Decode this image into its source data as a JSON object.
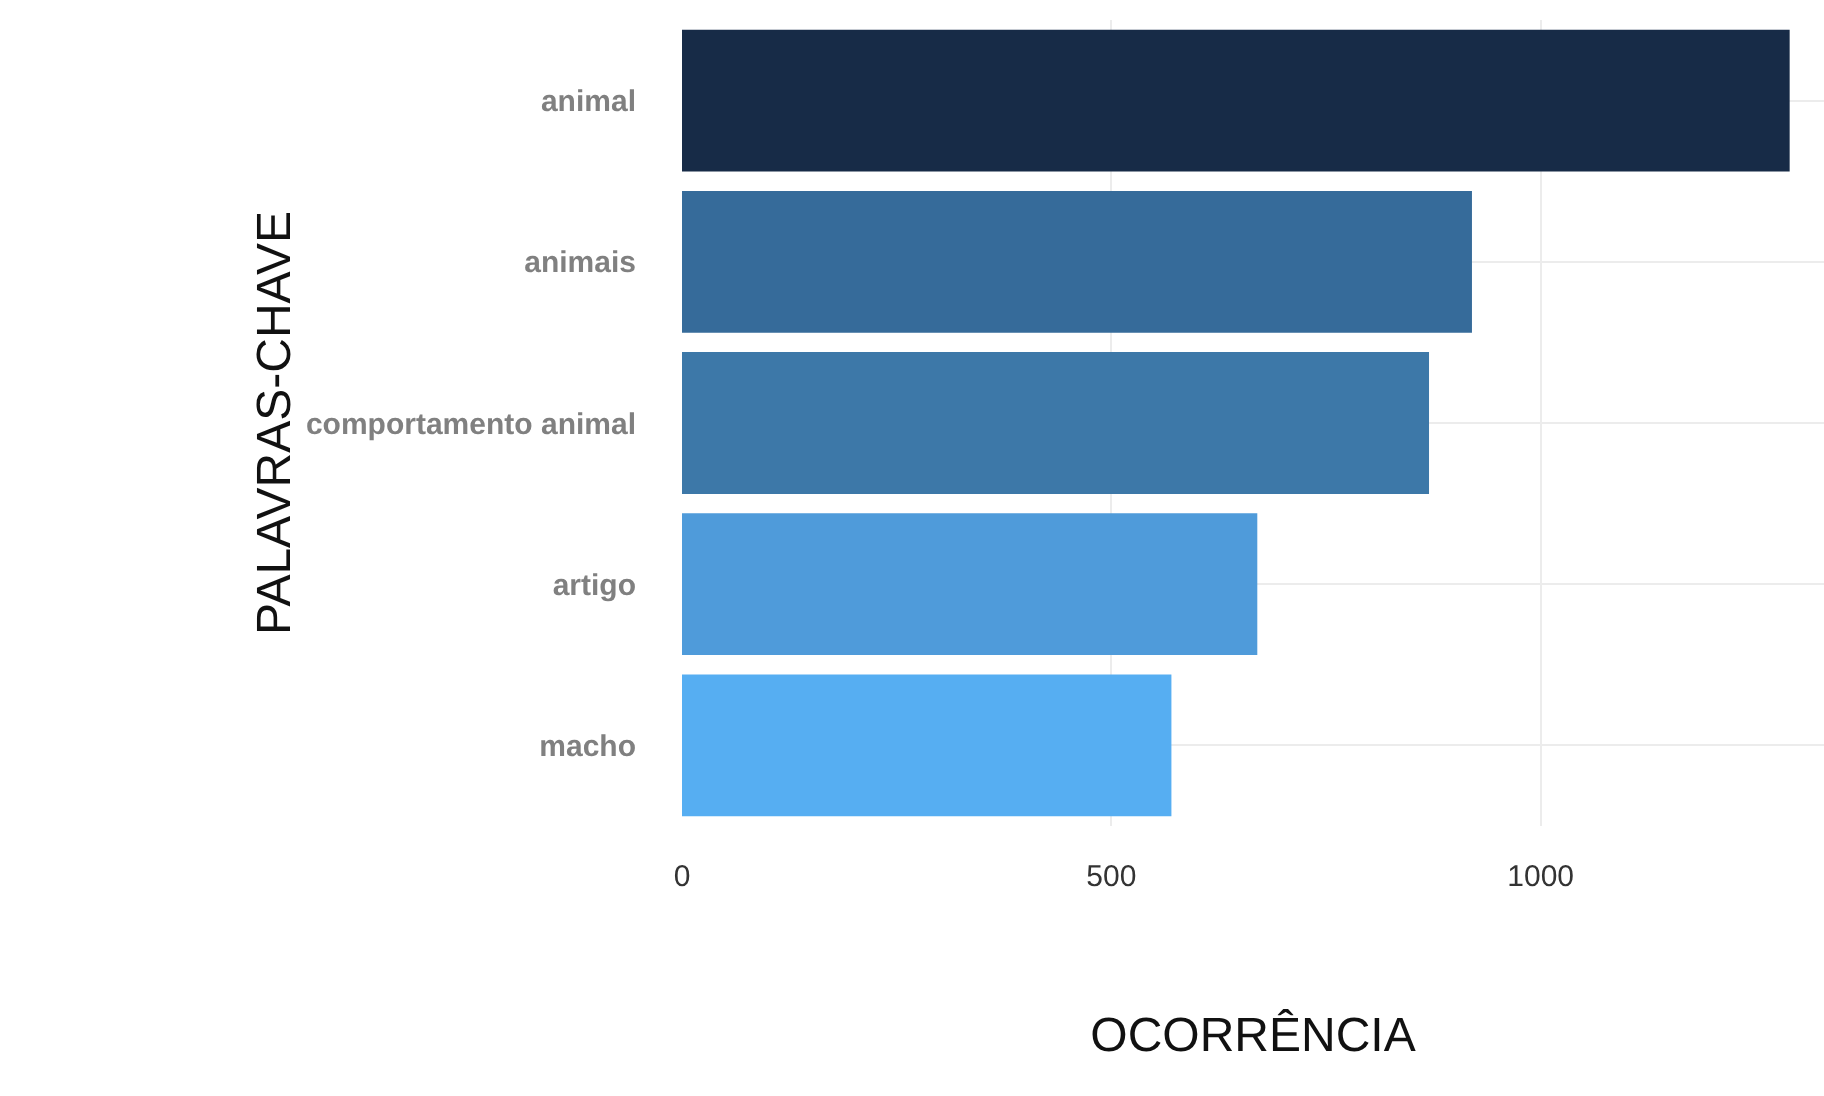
{
  "chart_data": {
    "type": "bar",
    "orientation": "horizontal",
    "xlabel": "OCORRÊNCIA",
    "ylabel": "PALAVRAS-CHAVE",
    "categories": [
      "animal",
      "animais",
      "comportamento animal",
      "artigo",
      "macho"
    ],
    "values": [
      1290,
      920,
      870,
      670,
      570
    ],
    "colors": [
      "#172b47",
      "#366b9a",
      "#3d78a8",
      "#4f9bda",
      "#56aef2"
    ],
    "xlim": [
      0,
      1330
    ],
    "xticks": [
      0,
      500,
      1000
    ],
    "grid": true
  }
}
